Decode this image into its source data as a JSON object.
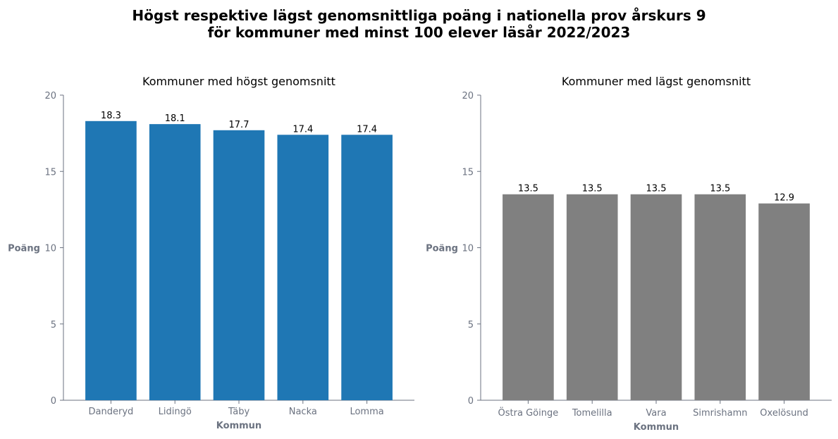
{
  "title_line1": "Högst respektive lägst genomsnittliga poäng i nationella prov årskurs 9",
  "title_line2": "för kommuner med minst 100 elever läsår 2022/2023",
  "colors": {
    "high": "#1f77b4",
    "low": "#808080",
    "axis": "#6b7280"
  },
  "chart_data": [
    {
      "type": "bar",
      "title": "Kommuner med högst genomsnitt",
      "xlabel": "Kommun",
      "ylabel": "Poäng",
      "ylim": [
        0,
        20
      ],
      "yticks": [
        0,
        5,
        10,
        15,
        20
      ],
      "categories": [
        "Danderyd",
        "Lidingö",
        "Täby",
        "Nacka",
        "Lomma"
      ],
      "values": [
        18.3,
        18.1,
        17.7,
        17.4,
        17.4
      ],
      "value_labels": [
        "18.3",
        "18.1",
        "17.7",
        "17.4",
        "17.4"
      ],
      "color": "#1f77b4",
      "grid": false
    },
    {
      "type": "bar",
      "title": "Kommuner med lägst genomsnitt",
      "xlabel": "Kommun",
      "ylabel": "Poäng",
      "ylim": [
        0,
        20
      ],
      "yticks": [
        0,
        5,
        10,
        15,
        20
      ],
      "categories": [
        "Östra Göinge",
        "Tomelilla",
        "Vara",
        "Simrishamn",
        "Oxelösund"
      ],
      "values": [
        13.5,
        13.5,
        13.5,
        13.5,
        12.9
      ],
      "value_labels": [
        "13.5",
        "13.5",
        "13.5",
        "13.5",
        "12.9"
      ],
      "color": "#808080",
      "grid": false
    }
  ]
}
